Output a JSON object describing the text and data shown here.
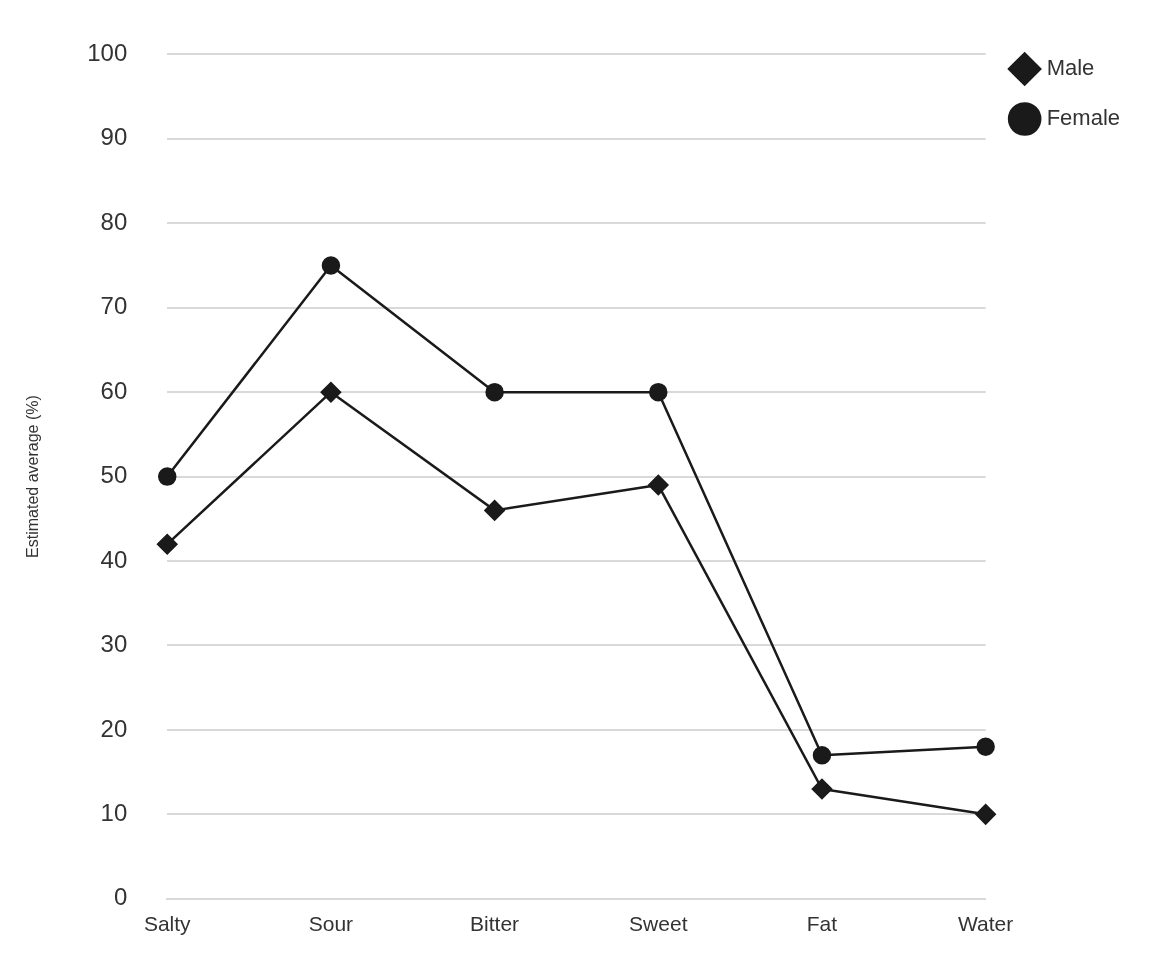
{
  "chart_data": {
    "type": "line",
    "ylabel": "Estimated average (%)",
    "categories": [
      "Salty",
      "Sour",
      "Bitter",
      "Sweet",
      "Fat",
      "Water"
    ],
    "series": [
      {
        "name": "Male",
        "color": "#1a1a1a",
        "marker": "diamond",
        "values": [
          42,
          60,
          46,
          49,
          13,
          10
        ]
      },
      {
        "name": "Female",
        "color": "#1a1a1a",
        "marker": "circle",
        "values": [
          50,
          75,
          60,
          60,
          17,
          18
        ]
      }
    ],
    "ylim": [
      0,
      100
    ],
    "yticks": [
      0,
      10,
      20,
      30,
      40,
      50,
      60,
      70,
      80,
      90,
      100
    ],
    "grid": "y",
    "legend": "top right"
  }
}
